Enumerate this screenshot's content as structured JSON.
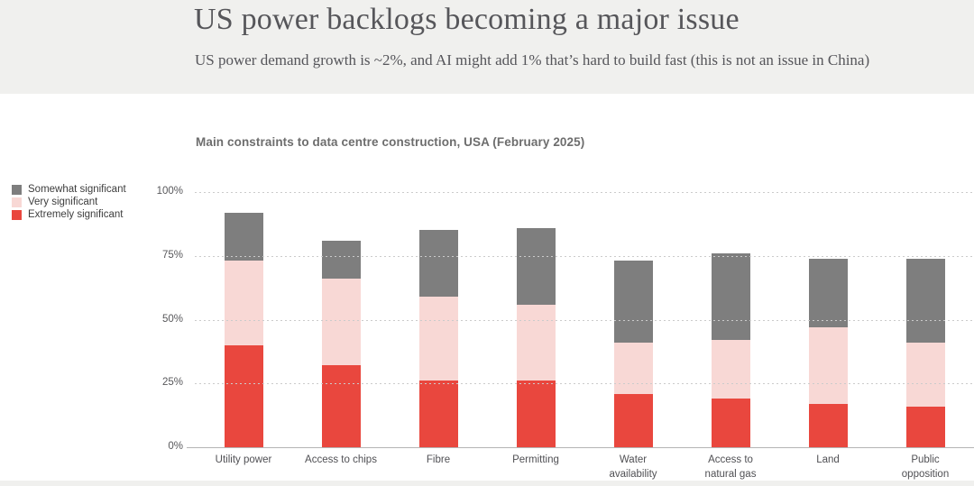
{
  "header": {
    "title": "US power backlogs becoming a major issue",
    "subtitle": "US power demand growth is ~2%, and AI might add 1% that’s hard to build fast (this is not an issue in China)"
  },
  "colors": {
    "header_bg": "#f0f0ee",
    "somewhat_significant": "#7e7e7e",
    "very_significant": "#f8d8d5",
    "extremely_significant": "#e9473e",
    "gridline": "#cbcbcb",
    "axis_line": "#b5b5b5"
  },
  "chart_data": {
    "type": "bar",
    "stacked": true,
    "title": "Main constraints to data centre construction, USA (February 2025)",
    "categories": [
      "Utility power",
      "Access to chips",
      "Fibre",
      "Permitting",
      "Water\navailability",
      "Access to\nnatural gas",
      "Land",
      "Public\nopposition"
    ],
    "series": [
      {
        "name": "Extremely significant",
        "color": "#e9473e",
        "values": [
          40,
          32,
          26,
          26,
          21,
          19,
          17,
          16
        ]
      },
      {
        "name": "Very significant",
        "color": "#f8d8d5",
        "values": [
          33,
          34,
          33,
          30,
          20,
          23,
          30,
          25
        ]
      },
      {
        "name": "Somewhat significant",
        "color": "#7e7e7e",
        "values": [
          19,
          15,
          26,
          30,
          32,
          34,
          27,
          33
        ]
      }
    ],
    "stack_totals": [
      92,
      81,
      85,
      86,
      73,
      76,
      74,
      74
    ],
    "legend_order": [
      "Somewhat significant",
      "Very significant",
      "Extremely significant"
    ],
    "legend_position": "left",
    "yticks": [
      "100%",
      "75%",
      "50%",
      "25%",
      "0%"
    ],
    "ylim": [
      0,
      100
    ],
    "grid": "horizontal dotted"
  }
}
